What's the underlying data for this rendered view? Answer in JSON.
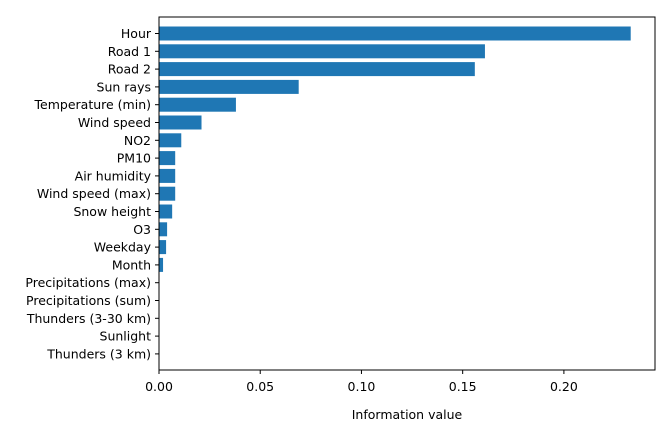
{
  "chart_data": {
    "type": "bar",
    "orientation": "horizontal",
    "title": "",
    "xlabel": "Information value",
    "ylabel": "",
    "xlim": [
      0,
      0.245
    ],
    "xticks": [
      0.0,
      0.05,
      0.1,
      0.15,
      0.2
    ],
    "xtick_labels": [
      "0.00",
      "0.05",
      "0.10",
      "0.15",
      "0.20"
    ],
    "grid": false,
    "bar_color": "#1f77b4",
    "categories": [
      "Hour",
      "Road 1",
      "Road 2",
      "Sun rays",
      "Temperature (min)",
      "Wind speed",
      "NO2",
      "PM10",
      "Air humidity",
      "Wind speed (max)",
      "Snow height",
      "O3",
      "Weekday",
      "Month",
      "Precipitations (max)",
      "Precipitations (sum)",
      "Thunders (3-30 km)",
      "Sunlight",
      "Thunders (3 km)"
    ],
    "values": [
      0.233,
      0.161,
      0.156,
      0.069,
      0.038,
      0.021,
      0.011,
      0.008,
      0.008,
      0.008,
      0.0065,
      0.004,
      0.0035,
      0.002,
      0.0002,
      0.0001,
      0.0,
      0.0,
      0.0
    ]
  }
}
